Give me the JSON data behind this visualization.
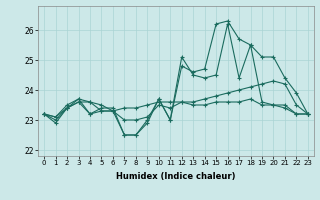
{
  "xlabel": "Humidex (Indice chaleur)",
  "ylabel": "",
  "bg_color": "#cce8e8",
  "line_color": "#1a6b5e",
  "xlim": [
    -0.5,
    23.5
  ],
  "ylim": [
    21.8,
    26.8
  ],
  "yticks": [
    22,
    23,
    24,
    25,
    26
  ],
  "xticks": [
    0,
    1,
    2,
    3,
    4,
    5,
    6,
    7,
    8,
    9,
    10,
    11,
    12,
    13,
    14,
    15,
    16,
    17,
    18,
    19,
    20,
    21,
    22,
    23
  ],
  "series": [
    [
      23.2,
      22.9,
      23.4,
      23.6,
      23.6,
      23.5,
      23.3,
      22.5,
      22.5,
      22.9,
      23.7,
      23.0,
      24.8,
      24.6,
      24.7,
      26.2,
      26.3,
      25.7,
      25.5,
      25.1,
      25.1,
      24.4,
      23.9,
      23.2
    ],
    [
      23.2,
      23.0,
      23.4,
      23.7,
      23.2,
      23.4,
      23.4,
      22.5,
      22.5,
      23.0,
      23.7,
      23.0,
      25.1,
      24.5,
      24.4,
      24.5,
      26.2,
      24.4,
      25.5,
      23.6,
      23.5,
      23.5,
      23.2,
      23.2
    ],
    [
      23.2,
      23.1,
      23.5,
      23.7,
      23.6,
      23.3,
      23.3,
      23.4,
      23.4,
      23.5,
      23.6,
      23.6,
      23.6,
      23.6,
      23.7,
      23.8,
      23.9,
      24.0,
      24.1,
      24.2,
      24.3,
      24.2,
      23.5,
      23.2
    ],
    [
      23.2,
      23.1,
      23.4,
      23.6,
      23.2,
      23.3,
      23.3,
      23.0,
      23.0,
      23.1,
      23.5,
      23.4,
      23.6,
      23.5,
      23.5,
      23.6,
      23.6,
      23.6,
      23.7,
      23.5,
      23.5,
      23.4,
      23.2,
      23.2
    ]
  ],
  "grid_color": "#aad4d4",
  "xlabel_fontsize": 6,
  "tick_fontsize": 5,
  "ytick_fontsize": 5.5
}
